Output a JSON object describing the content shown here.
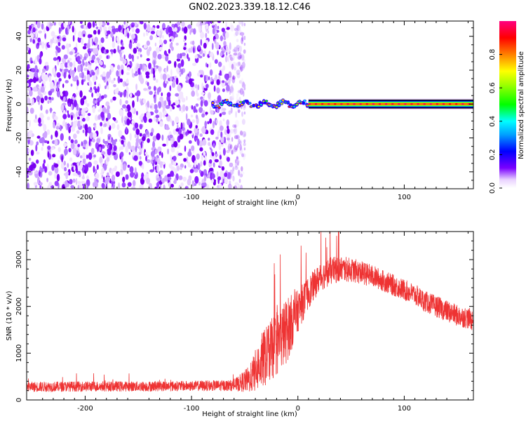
{
  "chart_data": [
    {
      "type": "heatmap",
      "title": "GN02.2023.339.18.12.C46",
      "xlabel": "Height of straight line (km)",
      "ylabel": "Frequency (Hz)",
      "xlim": [
        -255,
        165
      ],
      "ylim": [
        -50,
        49
      ],
      "xticks": [
        -200,
        -100,
        0,
        100
      ],
      "yticks": [
        -40,
        -20,
        0,
        20,
        40
      ],
      "colorbar": {
        "label": "Normalized spectral amplitude",
        "range": [
          0,
          1
        ],
        "ticks": [
          0.0,
          0.2,
          0.4,
          0.6,
          0.8
        ],
        "tick_labels": [
          "0.0",
          "0.2",
          "0.4",
          "0.6",
          "0.8"
        ]
      },
      "regions": [
        {
          "description": "noise",
          "x_range": [
            -255,
            -58
          ],
          "freq_range": [
            -50,
            49
          ],
          "amplitude_range": [
            0.0,
            0.12
          ]
        },
        {
          "description": "signal onset",
          "x_range": [
            -80,
            10
          ],
          "freq_center": 0,
          "freq_halfwidth": 3,
          "amplitude_range": [
            0.1,
            0.9
          ]
        },
        {
          "description": "steady carrier",
          "x_range": [
            10,
            165
          ],
          "freq_center": 0,
          "amplitude_range": [
            0.75,
            0.95
          ]
        }
      ]
    },
    {
      "type": "line",
      "xlabel": "Height of straight line (km)",
      "ylabel": "SNR (10 * v/v)",
      "xlim": [
        -255,
        165
      ],
      "ylim": [
        0,
        3600
      ],
      "xticks": [
        -200,
        -100,
        0,
        100
      ],
      "yticks": [
        0,
        1000,
        2000,
        3000
      ],
      "color": "#ee3333",
      "envelope": {
        "x": [
          -255,
          -200,
          -150,
          -100,
          -60,
          -45,
          -35,
          -20,
          -10,
          0,
          10,
          20,
          30,
          40,
          50,
          60,
          70,
          80,
          90,
          100,
          110,
          120,
          130,
          140,
          150,
          160,
          165
        ],
        "mean": [
          280,
          290,
          290,
          300,
          310,
          450,
          800,
          1200,
          1500,
          1900,
          2300,
          2600,
          2750,
          2800,
          2780,
          2720,
          2650,
          2550,
          2450,
          2350,
          2250,
          2100,
          2000,
          1900,
          1800,
          1750,
          1700
        ],
        "noise_amplitude": [
          110,
          110,
          110,
          110,
          120,
          300,
          600,
          700,
          700,
          450,
          350,
          300,
          300,
          280,
          260,
          250,
          240,
          230,
          230,
          230,
          230,
          230,
          230,
          230,
          230,
          230,
          230
        ]
      }
    }
  ]
}
